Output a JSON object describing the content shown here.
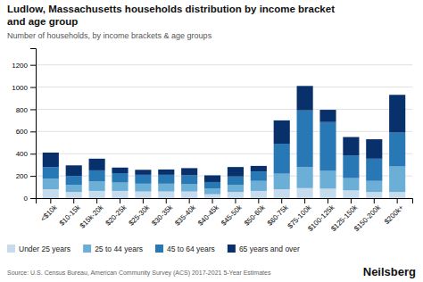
{
  "chart_data": {
    "type": "bar",
    "stacked": true,
    "title": [
      "Ludlow, Massachusetts households distribution by income bracket",
      "and age group"
    ],
    "subtitle": "Number of households, by income brackets & age groups",
    "annotations": [
      "Source: U.S. Census Bureau, American Community Survey (ACS) 2017-2021 5-Year Estimates",
      "Neilsberg"
    ],
    "categories": [
      "<$10k",
      "$10-15k",
      "$15k-20k",
      "$20-25k",
      "$25-30k",
      "$30-35k",
      "$35-40k",
      "$40-45k",
      "$45-50k",
      "$50-60k",
      "$60-75k",
      "$75-100k",
      "$100-125k",
      "$125-150k",
      "$150-200k",
      "$200k+"
    ],
    "series": [
      {
        "name": "Under 25 years",
        "color": "#c6dcee",
        "values": [
          80,
          55,
          65,
          65,
          60,
          60,
          60,
          35,
          55,
          65,
          80,
          90,
          85,
          70,
          55,
          55
        ]
      },
      {
        "name": "25 to 44 years",
        "color": "#6baed6",
        "values": [
          95,
          65,
          85,
          75,
          70,
          70,
          65,
          50,
          65,
          90,
          140,
          190,
          160,
          110,
          100,
          230
        ]
      },
      {
        "name": "45 to 64 years",
        "color": "#2878b5",
        "values": [
          105,
          80,
          100,
          85,
          80,
          80,
          80,
          60,
          75,
          85,
          270,
          510,
          440,
          205,
          200,
          305
        ]
      },
      {
        "name": "65 years and over",
        "color": "#08306b",
        "values": [
          130,
          95,
          105,
          50,
          45,
          48,
          65,
          60,
          85,
          50,
          210,
          220,
          110,
          165,
          175,
          340
        ]
      }
    ],
    "ylim": [
      0,
      1350
    ],
    "yticks": [
      0,
      200,
      400,
      600,
      800,
      1000,
      1200
    ],
    "grid": true,
    "legend": "bottom"
  }
}
